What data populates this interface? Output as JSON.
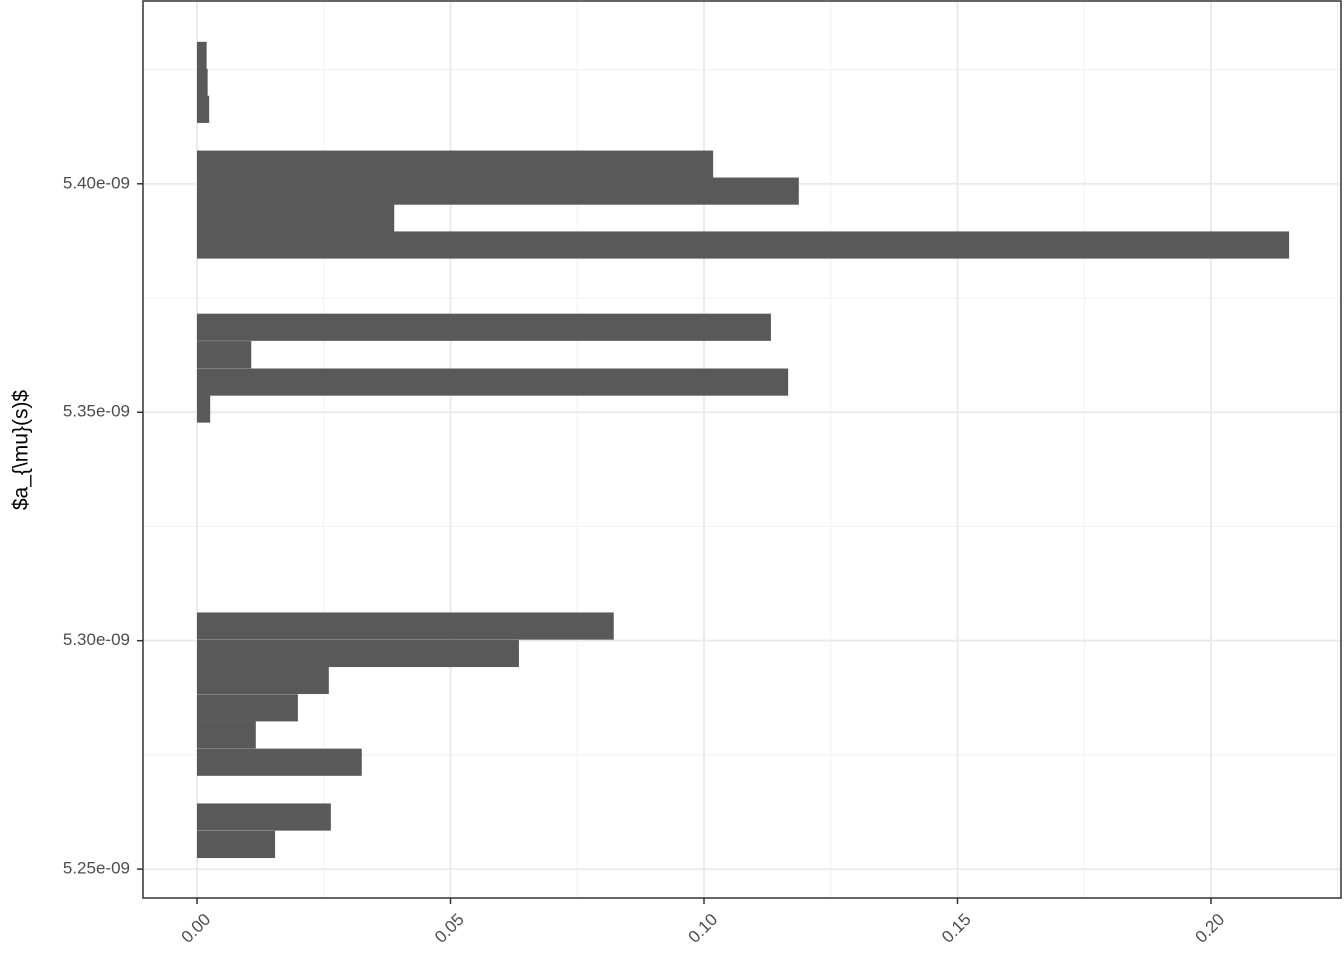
{
  "chart_data": {
    "type": "bar",
    "orientation": "horizontal",
    "y_label": "$a_{\\mu}(s)$",
    "color": "#595959",
    "bar_height": 5.95e-12,
    "y": [
      5.2554e-09,
      5.2614e-09,
      5.2734e-09,
      5.2794e-09,
      5.2853e-09,
      5.2913e-09,
      5.2972e-09,
      5.3032e-09,
      5.3507e-09,
      5.3566e-09,
      5.3626e-09,
      5.3686e-09,
      5.3866e-09,
      5.3925e-09,
      5.3984e-09,
      5.4043e-09,
      5.4163e-09,
      5.4222e-09,
      5.4281e-09
    ],
    "values": [
      0.0154,
      0.0264,
      0.0325,
      0.0116,
      0.0199,
      0.026,
      0.0635,
      0.0822,
      0.0026,
      0.1166,
      0.0107,
      0.1132,
      0.2154,
      0.0389,
      0.1187,
      0.1018,
      0.0024,
      0.0021,
      0.0019
    ],
    "xlim": [
      -0.01065,
      0.22564
    ],
    "xticks": [
      {
        "value": 0,
        "label": "0.00"
      },
      0.05,
      {
        "value": 0.1,
        "label": "0.10"
      },
      0.15,
      {
        "value": 0.2,
        "label": "0.20"
      }
    ],
    "ylim": [
      5.24368e-09,
      5.44001e-09
    ],
    "yticks": [
      {
        "value": 5.25e-09,
        "label": "5.25e-09"
      },
      {
        "value": 5.3e-09,
        "label": "5.30e-09"
      },
      {
        "value": 5.35e-09,
        "label": "5.35e-09"
      },
      {
        "value": 5.4e-09,
        "label": "5.40e-09"
      }
    ],
    "grid": true
  }
}
